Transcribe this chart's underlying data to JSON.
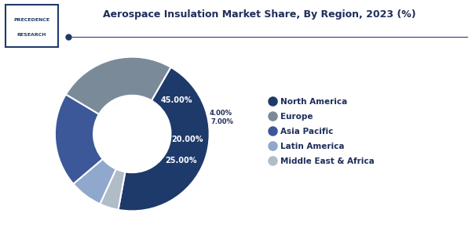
{
  "title": "Aerospace Insulation Market Share, By Region, 2023 (%)",
  "labels": [
    "North America",
    "Europe",
    "Asia Pacific",
    "Latin America",
    "Middle East & Africa"
  ],
  "values": [
    45.0,
    25.0,
    20.0,
    7.0,
    4.0
  ],
  "colors": [
    "#1e3a6b",
    "#7a8a99",
    "#3d5898",
    "#8fa8cc",
    "#b0bcc8"
  ],
  "pct_labels": [
    "45.00%",
    "25.00%",
    "20.00%",
    "7.00%",
    "4.00%"
  ],
  "bg_color": "#ffffff",
  "title_color": "#1e2d5a",
  "startangle": 72,
  "legend_colors": [
    "#1e3a6b",
    "#7a8a99",
    "#3d5898",
    "#8fa8cc",
    "#b0bcc8"
  ]
}
